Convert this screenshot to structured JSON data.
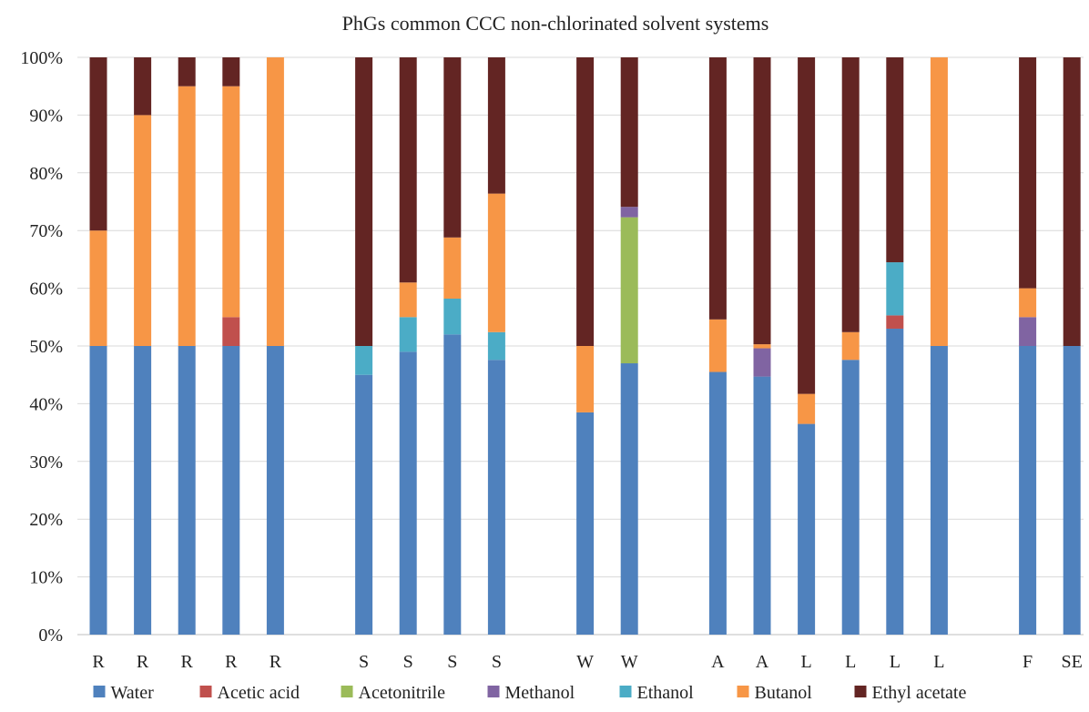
{
  "chart_data": {
    "type": "bar",
    "stacked": true,
    "percent": true,
    "title": "PhGs common CCC non-chlorinated  solvent systems",
    "xlabel": "",
    "ylabel": "",
    "ylim": [
      0,
      100
    ],
    "yticks": [
      "0%",
      "10%",
      "20%",
      "30%",
      "40%",
      "50%",
      "60%",
      "70%",
      "80%",
      "90%",
      "100%"
    ],
    "legend_position": "bottom",
    "grid": true,
    "category_slots": [
      0,
      1,
      2,
      3,
      4,
      6,
      7,
      8,
      9,
      11,
      12,
      14,
      15,
      16,
      17,
      18,
      19,
      21,
      22
    ],
    "categories": [
      "R",
      "R",
      "R",
      "R",
      "R",
      "S",
      "S",
      "S",
      "S",
      "W",
      "W",
      "A",
      "A",
      "L",
      "L",
      "L",
      "L",
      "F",
      "SE"
    ],
    "series": [
      {
        "name": "Water",
        "color": "#4f81bd",
        "values": [
          50,
          50,
          50,
          50,
          50,
          45,
          49,
          52,
          47.6,
          38.5,
          47,
          45.5,
          44.7,
          36.5,
          47.6,
          53,
          50,
          50,
          50
        ]
      },
      {
        "name": "Acetic acid",
        "color": "#c0504d",
        "values": [
          0,
          0,
          0,
          5,
          0,
          0,
          0,
          0,
          0,
          0,
          0,
          0,
          0,
          0,
          0,
          2.3,
          0,
          0,
          0
        ]
      },
      {
        "name": "Acetonitrile",
        "color": "#9bbb59",
        "values": [
          0,
          0,
          0,
          0,
          0,
          0,
          0,
          0,
          0,
          0,
          25.3,
          0,
          0,
          0,
          0,
          0,
          0,
          0,
          0
        ]
      },
      {
        "name": "Methanol",
        "color": "#8064a2",
        "values": [
          0,
          0,
          0,
          0,
          0,
          0,
          0,
          0,
          0,
          0,
          1.8,
          0,
          4.9,
          0,
          0,
          0,
          0,
          5,
          0
        ]
      },
      {
        "name": "Ethanol",
        "color": "#4bacc6",
        "values": [
          0,
          0,
          0,
          0,
          0,
          5,
          6,
          6.2,
          4.8,
          0,
          0,
          0,
          0,
          0,
          0,
          9.2,
          0,
          0,
          0
        ]
      },
      {
        "name": "Butanol",
        "color": "#f79646",
        "values": [
          20,
          40,
          45,
          40,
          50,
          0,
          6,
          10.6,
          24,
          11.5,
          0,
          9.1,
          0.7,
          5.2,
          4.8,
          0,
          50,
          5,
          0
        ]
      },
      {
        "name": "Ethyl acetate",
        "color": "#632523",
        "values": [
          30,
          10,
          5,
          5,
          0,
          50,
          39,
          31.2,
          23.6,
          50,
          25.9,
          45.4,
          49.7,
          58.3,
          47.6,
          35.5,
          0,
          40,
          50
        ]
      }
    ]
  }
}
